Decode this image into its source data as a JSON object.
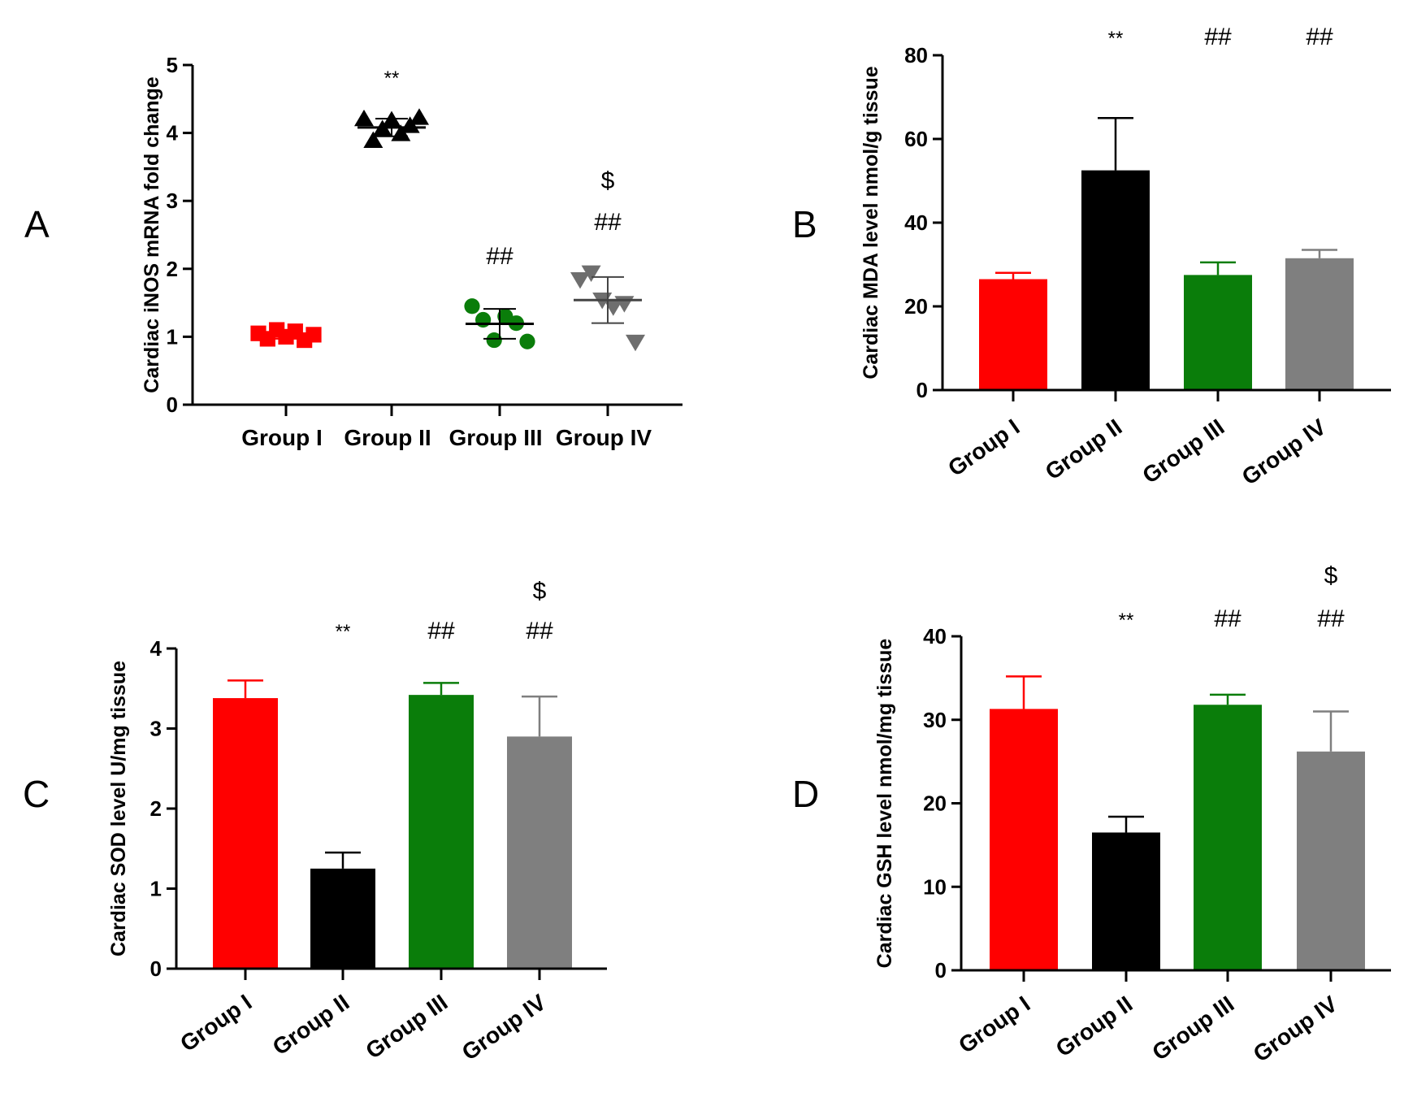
{
  "chart_data": [
    {
      "id": "A",
      "panel_label": "A",
      "type": "scatter",
      "ylabel": "Cardiac iNOS mRNA fold change",
      "ylim": [
        0,
        5
      ],
      "yticks": [
        "0",
        "1",
        "2",
        "3",
        "4",
        "5"
      ],
      "categories": [
        "Group I",
        "Group II",
        "Group III",
        "Group IV"
      ],
      "colors": [
        "#ff0000",
        "#000000",
        "#0a7d0a",
        "#6e6e6e"
      ],
      "markers": [
        "square",
        "triangle-up",
        "circle",
        "triangle-down"
      ],
      "points": [
        [
          1.05,
          0.97,
          1.1,
          1.0,
          1.08,
          0.95,
          1.03
        ],
        [
          4.2,
          3.88,
          4.05,
          4.18,
          3.98,
          4.1,
          4.22
        ],
        [
          1.45,
          1.25,
          0.95,
          1.3,
          1.2,
          0.93
        ],
        [
          1.85,
          1.95,
          1.55,
          1.45,
          1.5,
          0.93
        ]
      ],
      "means": [
        1.02,
        4.08,
        1.19,
        1.54
      ],
      "errors": [
        0.05,
        0.13,
        0.22,
        0.34
      ],
      "annotations": [
        {
          "group": 1,
          "lines": [
            "**"
          ]
        },
        {
          "group": 2,
          "lines": [
            "##"
          ]
        },
        {
          "group": 3,
          "lines": [
            "$",
            "##"
          ]
        }
      ]
    },
    {
      "id": "B",
      "panel_label": "B",
      "type": "bar",
      "ylabel": "Cardiac MDA level nmol/g tissue",
      "ylim": [
        0,
        80
      ],
      "yticks": [
        "0",
        "20",
        "40",
        "60",
        "80"
      ],
      "categories": [
        "Group I",
        "Group II",
        "Group III",
        "Group IV"
      ],
      "colors": [
        "#ff0000",
        "#000000",
        "#0a7d0a",
        "#7f7f7f"
      ],
      "values": [
        26.5,
        52.5,
        27.5,
        31.5
      ],
      "errors": [
        1.5,
        12.5,
        3.0,
        2.0
      ],
      "annotations": [
        {
          "group": 1,
          "lines": [
            "**"
          ]
        },
        {
          "group": 2,
          "lines": [
            "##"
          ]
        },
        {
          "group": 3,
          "lines": [
            "##"
          ]
        }
      ]
    },
    {
      "id": "C",
      "panel_label": "C",
      "type": "bar",
      "ylabel": "Cardiac SOD level U/mg tissue",
      "ylim": [
        0,
        4
      ],
      "yticks": [
        "0",
        "1",
        "2",
        "3",
        "4"
      ],
      "categories": [
        "Group I",
        "Group II",
        "Group III",
        "Group IV"
      ],
      "colors": [
        "#ff0000",
        "#000000",
        "#0a7d0a",
        "#7f7f7f"
      ],
      "values": [
        3.38,
        1.25,
        3.42,
        2.9
      ],
      "errors": [
        0.22,
        0.2,
        0.15,
        0.5
      ],
      "annotations": [
        {
          "group": 1,
          "lines": [
            "**"
          ]
        },
        {
          "group": 2,
          "lines": [
            "##"
          ]
        },
        {
          "group": 3,
          "lines": [
            "$",
            "##"
          ]
        }
      ]
    },
    {
      "id": "D",
      "panel_label": "D",
      "type": "bar",
      "ylabel": "Cardiac GSH level nmol/mg tissue",
      "ylim": [
        0,
        40
      ],
      "yticks": [
        "0",
        "10",
        "20",
        "30",
        "40"
      ],
      "categories": [
        "Group I",
        "Group II",
        "Group III",
        "Group IV"
      ],
      "colors": [
        "#ff0000",
        "#000000",
        "#0a7d0a",
        "#7f7f7f"
      ],
      "values": [
        31.3,
        16.5,
        31.8,
        26.2
      ],
      "errors": [
        3.9,
        1.9,
        1.2,
        4.8
      ],
      "annotations": [
        {
          "group": 1,
          "lines": [
            "**"
          ]
        },
        {
          "group": 2,
          "lines": [
            "##"
          ]
        },
        {
          "group": 3,
          "lines": [
            "$",
            "##"
          ]
        }
      ]
    }
  ]
}
